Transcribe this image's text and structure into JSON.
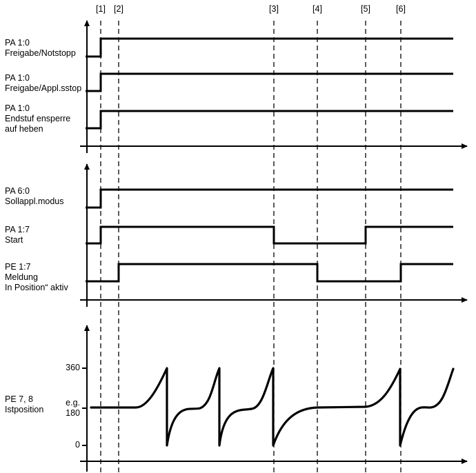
{
  "markers": [
    "[1]",
    "[2]",
    "[3]",
    "[4]",
    "[5]",
    "[6]"
  ],
  "panel1": {
    "signals": [
      {
        "id": "PA 1:0",
        "desc": "Freigabe/Notstopp"
      },
      {
        "id": "PA 1:0",
        "desc": "Freigabe/Appl.sstop"
      },
      {
        "id": "PA 1:0",
        "desc": "Endstuf ensperre",
        "desc2": "auf heben"
      }
    ]
  },
  "panel2": {
    "signals": [
      {
        "id": "PA 6:0",
        "desc": "Sollappl.modus"
      },
      {
        "id": "PA 1:7",
        "desc": "Start"
      },
      {
        "id": "PE 1:7",
        "desc": "Meldung",
        "desc2": "In Position“ aktiv"
      }
    ]
  },
  "panel3": {
    "id": "PE 7, 8",
    "desc": "Istposition",
    "ticks": {
      "top": "360",
      "mid_prefix": "e.g.",
      "mid": "180",
      "bottom": "0"
    }
  },
  "colors": {
    "line": "#000000",
    "background": "#ffffff"
  }
}
